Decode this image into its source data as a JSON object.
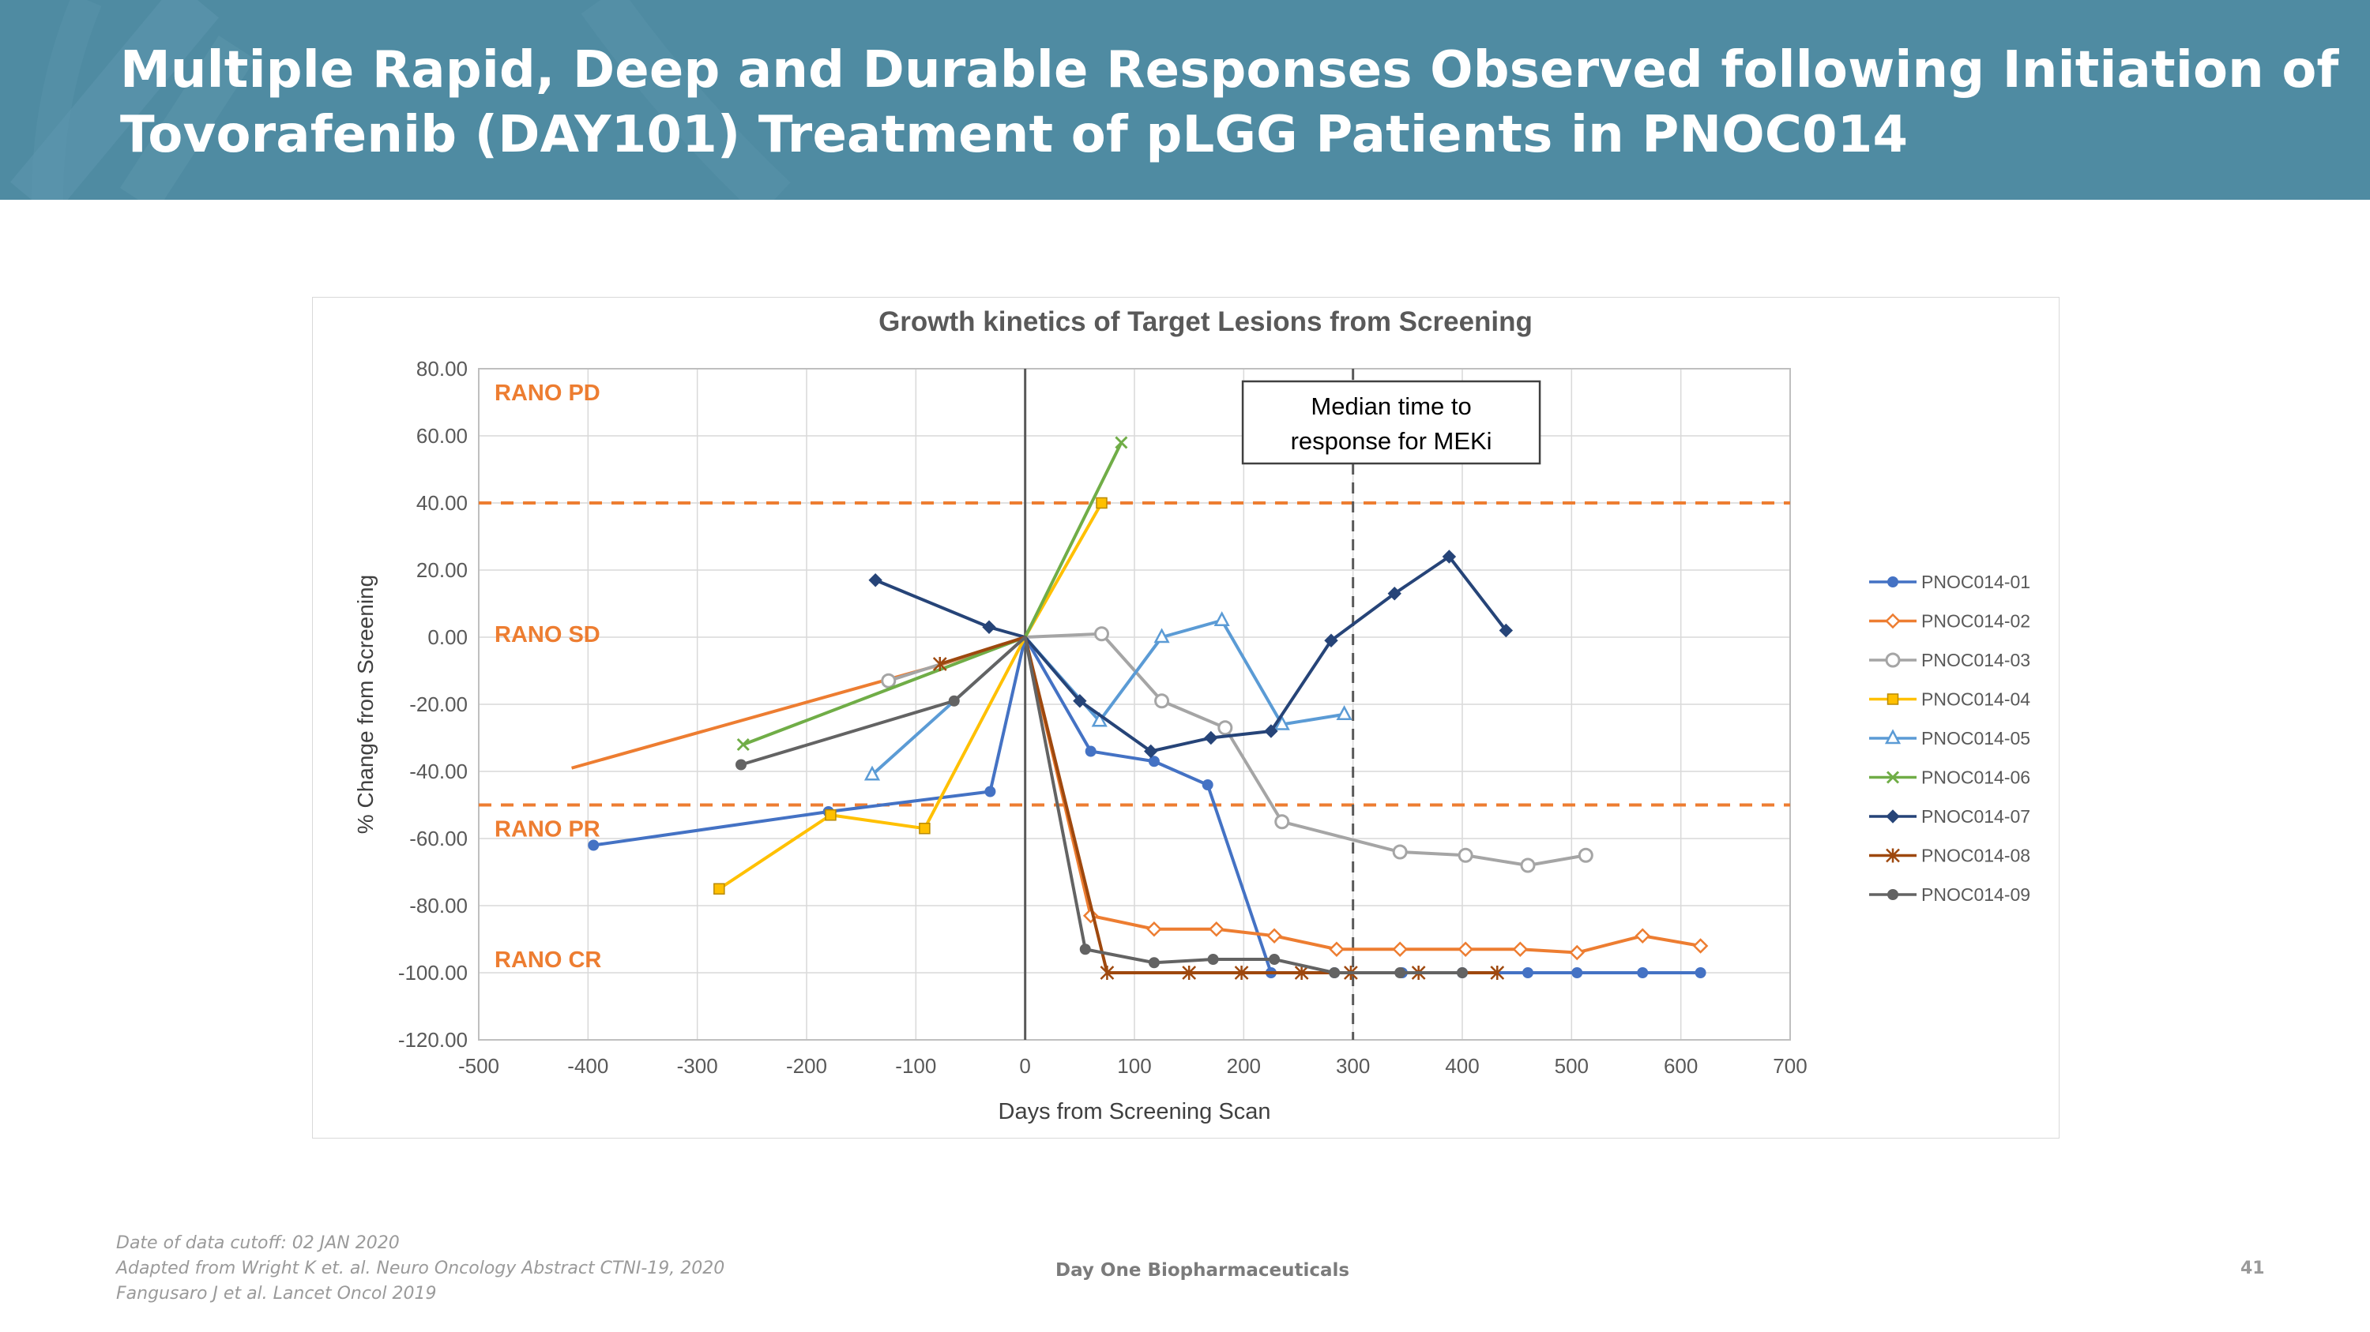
{
  "slide": {
    "title_line1": "Multiple Rapid, Deep and Durable Responses Observed following Initiation of",
    "title_line2": "Tovorafenib (DAY101) Treatment of pLGG Patients in PNOC014",
    "footer_notes": [
      "Date of data cutoff:  02 JAN 2020",
      "Adapted from Wright K et. al.  Neuro Oncology Abstract CTNI-19, 2020",
      "Fangusaro J et al.  Lancet Oncol 2019"
    ],
    "company": "Day One Biopharmaceuticals",
    "page_number": "41",
    "banner_color": "#4f8ba2"
  },
  "chart_data": {
    "type": "line",
    "title": "Growth kinetics of Target Lesions from Screening",
    "xlabel": "Days from Screening Scan",
    "ylabel": "% Change from Screening",
    "xlim": [
      -500,
      700
    ],
    "ylim": [
      -120,
      80
    ],
    "xticks": [
      -500,
      -400,
      -300,
      -200,
      -100,
      0,
      100,
      200,
      300,
      400,
      500,
      600,
      700
    ],
    "xtick_labels": [
      "-500",
      "-400",
      "-300",
      "-200",
      "-100",
      "0",
      "100",
      "200",
      "300",
      "400",
      "500",
      "600",
      "700"
    ],
    "yticks": [
      80,
      60,
      40,
      20,
      0,
      -20,
      -40,
      -60,
      -80,
      -100,
      -120
    ],
    "ytick_labels": [
      "80.00",
      "60.00",
      "40.00",
      "20.00",
      "0.00",
      "-20.00",
      "-40.00",
      "-60.00",
      "-80.00",
      "-100.00",
      "-120.00"
    ],
    "grid": true,
    "legend_position": "right",
    "reference_lines": [
      {
        "type": "horizontal",
        "value": 40,
        "style": "dashed",
        "color": "#ed7d31"
      },
      {
        "type": "horizontal",
        "value": -50,
        "style": "dashed",
        "color": "#ed7d31"
      },
      {
        "type": "vertical",
        "value": 0,
        "style": "solid",
        "color": "#595959"
      },
      {
        "type": "vertical",
        "value": 300,
        "style": "dashed",
        "color": "#595959"
      }
    ],
    "zone_labels": [
      {
        "text": "RANO PD",
        "y": 73,
        "color": "#ed7d31"
      },
      {
        "text": "RANO SD",
        "y": 1,
        "color": "#ed7d31"
      },
      {
        "text": "RANO PR",
        "y": -57,
        "color": "#ed7d31"
      },
      {
        "text": "RANO CR",
        "y": -96,
        "color": "#ed7d31"
      }
    ],
    "annotation": {
      "lines": [
        "Median time to",
        "response for MEKi"
      ],
      "x": 335,
      "y": 64
    },
    "series": [
      {
        "name": "PNOC014-01",
        "color": "#4472c4",
        "marker": "circle",
        "x": [
          -395,
          -180,
          -32,
          0,
          60,
          118,
          167,
          225,
          283,
          345,
          400,
          460,
          505,
          565,
          618
        ],
        "y": [
          -62,
          -52,
          -46,
          0,
          -34,
          -37,
          -44,
          -100,
          -100,
          -100,
          -100,
          -100,
          -100,
          -100,
          -100
        ]
      },
      {
        "name": "PNOC014-02",
        "color": "#ed7d31",
        "marker": "diamond",
        "x": [
          -415,
          -75,
          0,
          60,
          118,
          175,
          228,
          285,
          343,
          403,
          453,
          505,
          565,
          618
        ],
        "y": [
          -39,
          -8,
          0,
          -83,
          -87,
          -87,
          -89,
          -93,
          -93,
          -93,
          -93,
          -94,
          -89,
          -92
        ],
        "marker_from": 3
      },
      {
        "name": "PNOC014-03",
        "color": "#a5a5a5",
        "marker": "circle_open",
        "x": [
          -125,
          0,
          70,
          125,
          183,
          235,
          343,
          403,
          460,
          513
        ],
        "y": [
          -13,
          0,
          1,
          -19,
          -27,
          -55,
          -64,
          -65,
          -68,
          -65
        ]
      },
      {
        "name": "PNOC014-04",
        "color": "#ffc000",
        "marker": "square",
        "x": [
          -280,
          -178,
          -92,
          0,
          70
        ],
        "y": [
          -75,
          -53,
          -57,
          0,
          40
        ]
      },
      {
        "name": "PNOC014-05",
        "color": "#5b9bd5",
        "marker": "triangle",
        "x": [
          -140,
          0,
          68,
          125,
          180,
          235,
          292
        ],
        "y": [
          -41,
          0,
          -25,
          0,
          5,
          -26,
          -23
        ]
      },
      {
        "name": "PNOC014-06",
        "color": "#70ad47",
        "marker": "x",
        "x": [
          -258,
          0,
          88
        ],
        "y": [
          -32,
          0,
          58
        ]
      },
      {
        "name": "PNOC014-07",
        "color": "#264478",
        "marker": "diamond_filled",
        "x": [
          -137,
          -33,
          0,
          50,
          115,
          170,
          225,
          280,
          338,
          388,
          440
        ],
        "y": [
          17,
          3,
          0,
          -19,
          -34,
          -30,
          -28,
          -1,
          13,
          24,
          2
        ]
      },
      {
        "name": "PNOC014-08",
        "color": "#9e480e",
        "marker": "star",
        "x": [
          -78,
          0,
          75,
          150,
          198,
          253,
          298,
          360,
          432
        ],
        "y": [
          -8,
          0,
          -100,
          -100,
          -100,
          -100,
          -100,
          -100,
          -100
        ]
      },
      {
        "name": "PNOC014-09",
        "color": "#636363",
        "marker": "circle",
        "x": [
          -260,
          -65,
          0,
          55,
          118,
          172,
          228,
          283,
          343,
          400
        ],
        "y": [
          -38,
          -19,
          0,
          -93,
          -97,
          -96,
          -96,
          -100,
          -100,
          -100
        ]
      }
    ]
  }
}
